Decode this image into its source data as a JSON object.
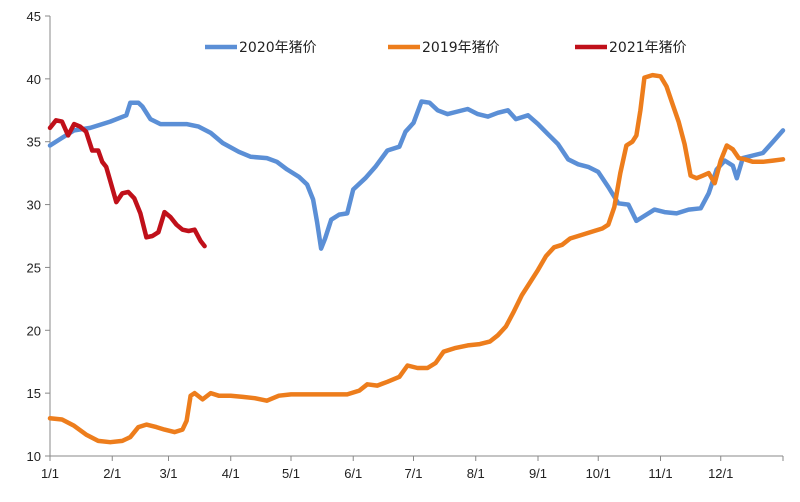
{
  "chart_data": {
    "type": "line",
    "title": "",
    "xlabel": "",
    "ylabel": "",
    "ylim": [
      10,
      45
    ],
    "yticks": [
      10,
      15,
      20,
      25,
      30,
      35,
      40,
      45
    ],
    "xlim": [
      0,
      365
    ],
    "xticks": [
      {
        "label": "1/1",
        "day": 0
      },
      {
        "label": "2/1",
        "day": 31
      },
      {
        "label": "3/1",
        "day": 59
      },
      {
        "label": "4/1",
        "day": 90
      },
      {
        "label": "5/1",
        "day": 120
      },
      {
        "label": "6/1",
        "day": 151
      },
      {
        "label": "7/1",
        "day": 181
      },
      {
        "label": "8/1",
        "day": 212
      },
      {
        "label": "9/1",
        "day": 243
      },
      {
        "label": "10/1",
        "day": 273
      },
      {
        "label": "11/1",
        "day": 304
      },
      {
        "label": "12/1",
        "day": 334
      }
    ],
    "grid": false,
    "legend_position": "top",
    "series": [
      {
        "name": "2020年猪价",
        "color": "#5B8FD6",
        "points": [
          [
            0,
            34.7
          ],
          [
            6,
            35.3
          ],
          [
            12,
            35.9
          ],
          [
            20,
            36.1
          ],
          [
            30,
            36.6
          ],
          [
            38,
            37.1
          ],
          [
            40,
            38.1
          ],
          [
            44,
            38.1
          ],
          [
            46,
            37.8
          ],
          [
            50,
            36.8
          ],
          [
            55,
            36.4
          ],
          [
            60,
            36.4
          ],
          [
            68,
            36.4
          ],
          [
            74,
            36.2
          ],
          [
            80,
            35.7
          ],
          [
            86,
            34.9
          ],
          [
            94,
            34.2
          ],
          [
            100,
            33.8
          ],
          [
            108,
            33.7
          ],
          [
            113,
            33.4
          ],
          [
            118,
            32.8
          ],
          [
            124,
            32.2
          ],
          [
            128,
            31.6
          ],
          [
            131,
            30.4
          ],
          [
            133,
            28.6
          ],
          [
            135,
            26.5
          ],
          [
            137,
            27.3
          ],
          [
            140,
            28.8
          ],
          [
            144,
            29.2
          ],
          [
            148,
            29.3
          ],
          [
            151,
            31.2
          ],
          [
            157,
            32.1
          ],
          [
            162,
            33.0
          ],
          [
            168,
            34.3
          ],
          [
            174,
            34.6
          ],
          [
            177,
            35.8
          ],
          [
            181,
            36.5
          ],
          [
            185,
            38.2
          ],
          [
            189,
            38.1
          ],
          [
            193,
            37.5
          ],
          [
            198,
            37.2
          ],
          [
            203,
            37.4
          ],
          [
            208,
            37.6
          ],
          [
            213,
            37.2
          ],
          [
            218,
            37.0
          ],
          [
            223,
            37.3
          ],
          [
            228,
            37.5
          ],
          [
            232,
            36.8
          ],
          [
            238,
            37.1
          ],
          [
            243,
            36.4
          ],
          [
            248,
            35.6
          ],
          [
            253,
            34.8
          ],
          [
            258,
            33.6
          ],
          [
            263,
            33.2
          ],
          [
            268,
            33.0
          ],
          [
            273,
            32.6
          ],
          [
            278,
            31.4
          ],
          [
            283,
            30.1
          ],
          [
            288,
            30.0
          ],
          [
            292,
            28.7
          ],
          [
            297,
            29.2
          ],
          [
            301,
            29.6
          ],
          [
            306,
            29.4
          ],
          [
            312,
            29.3
          ],
          [
            318,
            29.6
          ],
          [
            324,
            29.7
          ],
          [
            328,
            30.9
          ],
          [
            332,
            32.8
          ],
          [
            336,
            33.5
          ],
          [
            340,
            33.1
          ],
          [
            342,
            32.1
          ],
          [
            345,
            33.7
          ],
          [
            350,
            33.9
          ],
          [
            355,
            34.1
          ],
          [
            360,
            35.0
          ],
          [
            365,
            35.9
          ]
        ]
      },
      {
        "name": "2019年猪价",
        "color": "#ED7D1C",
        "points": [
          [
            0,
            13.0
          ],
          [
            6,
            12.9
          ],
          [
            12,
            12.4
          ],
          [
            18,
            11.7
          ],
          [
            24,
            11.2
          ],
          [
            30,
            11.1
          ],
          [
            36,
            11.2
          ],
          [
            40,
            11.5
          ],
          [
            44,
            12.3
          ],
          [
            48,
            12.5
          ],
          [
            53,
            12.3
          ],
          [
            57,
            12.1
          ],
          [
            62,
            11.9
          ],
          [
            66,
            12.1
          ],
          [
            68,
            12.8
          ],
          [
            70,
            14.8
          ],
          [
            72,
            15.0
          ],
          [
            76,
            14.5
          ],
          [
            80,
            15.0
          ],
          [
            84,
            14.8
          ],
          [
            90,
            14.8
          ],
          [
            96,
            14.7
          ],
          [
            102,
            14.6
          ],
          [
            108,
            14.4
          ],
          [
            114,
            14.8
          ],
          [
            120,
            14.9
          ],
          [
            130,
            14.9
          ],
          [
            140,
            14.9
          ],
          [
            148,
            14.9
          ],
          [
            154,
            15.2
          ],
          [
            158,
            15.7
          ],
          [
            163,
            15.6
          ],
          [
            168,
            15.9
          ],
          [
            174,
            16.3
          ],
          [
            178,
            17.2
          ],
          [
            183,
            17.0
          ],
          [
            188,
            17.0
          ],
          [
            192,
            17.4
          ],
          [
            196,
            18.3
          ],
          [
            202,
            18.6
          ],
          [
            208,
            18.8
          ],
          [
            214,
            18.9
          ],
          [
            219,
            19.1
          ],
          [
            223,
            19.6
          ],
          [
            227,
            20.3
          ],
          [
            231,
            21.5
          ],
          [
            235,
            22.8
          ],
          [
            239,
            23.8
          ],
          [
            243,
            24.8
          ],
          [
            247,
            25.9
          ],
          [
            251,
            26.6
          ],
          [
            255,
            26.8
          ],
          [
            259,
            27.3
          ],
          [
            263,
            27.5
          ],
          [
            267,
            27.7
          ],
          [
            271,
            27.9
          ],
          [
            275,
            28.1
          ],
          [
            278,
            28.4
          ],
          [
            281,
            29.8
          ],
          [
            284,
            32.5
          ],
          [
            287,
            34.7
          ],
          [
            290,
            35.0
          ],
          [
            292,
            35.5
          ],
          [
            294,
            37.5
          ],
          [
            296,
            40.1
          ],
          [
            300,
            40.3
          ],
          [
            304,
            40.2
          ],
          [
            307,
            39.4
          ],
          [
            310,
            38.0
          ],
          [
            313,
            36.6
          ],
          [
            316,
            34.8
          ],
          [
            319,
            32.3
          ],
          [
            322,
            32.1
          ],
          [
            325,
            32.3
          ],
          [
            328,
            32.5
          ],
          [
            331,
            31.7
          ],
          [
            334,
            33.5
          ],
          [
            337,
            34.7
          ],
          [
            340,
            34.4
          ],
          [
            343,
            33.7
          ],
          [
            346,
            33.6
          ],
          [
            350,
            33.4
          ],
          [
            355,
            33.4
          ],
          [
            360,
            33.5
          ],
          [
            365,
            33.6
          ]
        ]
      },
      {
        "name": "2021年猪价",
        "color": "#C0101A",
        "points": [
          [
            0,
            36.1
          ],
          [
            3,
            36.7
          ],
          [
            6,
            36.6
          ],
          [
            9,
            35.5
          ],
          [
            12,
            36.4
          ],
          [
            15,
            36.2
          ],
          [
            18,
            35.8
          ],
          [
            21,
            34.3
          ],
          [
            24,
            34.3
          ],
          [
            26,
            33.4
          ],
          [
            28,
            33.0
          ],
          [
            30,
            31.9
          ],
          [
            33,
            30.2
          ],
          [
            36,
            30.9
          ],
          [
            39,
            31.0
          ],
          [
            42,
            30.5
          ],
          [
            45,
            29.3
          ],
          [
            48,
            27.4
          ],
          [
            51,
            27.5
          ],
          [
            54,
            27.8
          ],
          [
            57,
            29.4
          ],
          [
            60,
            29.0
          ],
          [
            63,
            28.4
          ],
          [
            66,
            28.0
          ],
          [
            69,
            27.9
          ],
          [
            72,
            28.0
          ],
          [
            75,
            27.1
          ],
          [
            77,
            26.7
          ]
        ]
      }
    ]
  }
}
